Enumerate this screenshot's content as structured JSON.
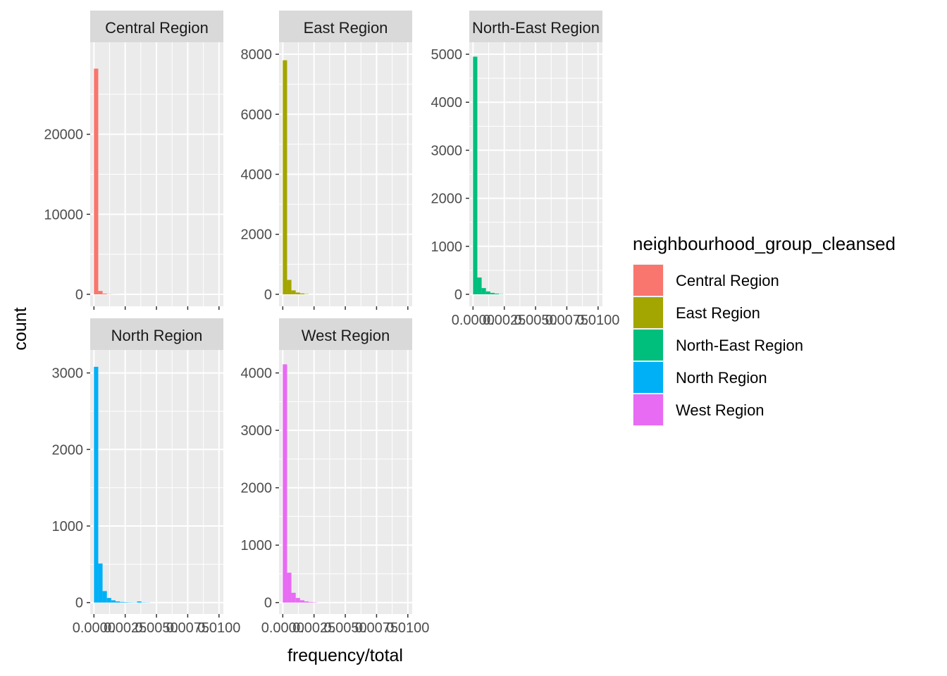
{
  "colors": {
    "Central Region": "#F8766D",
    "East Region": "#A3A500",
    "North-East Region": "#00BF7D",
    "North Region": "#00B0F6",
    "West Region": "#E76BF3"
  },
  "chart_data": {
    "type": "bar",
    "subtype": "faceted-histogram",
    "title": "",
    "xlabel": "frequency/total",
    "ylabel": "count",
    "scales": "free_y",
    "grid": true,
    "xlim": [
      -0.0003,
      0.01035
    ],
    "x_ticks": [
      0.0,
      0.0025,
      0.005,
      0.0075,
      0.01
    ],
    "x_tick_labels": [
      "0.0000",
      "0.0025",
      "0.0050",
      "0.0075",
      "0.0100"
    ],
    "bin_width": 0.000345,
    "legend": {
      "title": "neighbourhood_group_cleansed",
      "position": "right",
      "entries": [
        "Central Region",
        "East Region",
        "North-East Region",
        "North Region",
        "West Region"
      ]
    },
    "facets": [
      {
        "name": "Central Region",
        "strip": "Central Region",
        "ylim": [
          -1500,
          31500
        ],
        "y_ticks": [
          0,
          10000,
          20000
        ],
        "y_tick_labels": [
          "0",
          "10000",
          "20000"
        ],
        "counts": [
          28200,
          420,
          90,
          25,
          10,
          5
        ]
      },
      {
        "name": "East Region",
        "strip": "East Region",
        "ylim": [
          -400,
          8400
        ],
        "y_ticks": [
          0,
          2000,
          4000,
          6000,
          8000
        ],
        "y_tick_labels": [
          "0",
          "2000",
          "4000",
          "6000",
          "8000"
        ],
        "counts": [
          7800,
          480,
          130,
          60,
          30,
          10
        ]
      },
      {
        "name": "North-East Region",
        "strip": "North-East Region",
        "ylim": [
          -250,
          5250
        ],
        "y_ticks": [
          0,
          1000,
          2000,
          3000,
          4000,
          5000
        ],
        "y_tick_labels": [
          "0",
          "1000",
          "2000",
          "3000",
          "4000",
          "5000"
        ],
        "counts": [
          4950,
          350,
          130,
          60,
          30,
          15,
          5
        ]
      },
      {
        "name": "North Region",
        "strip": "North Region",
        "ylim": [
          -150,
          3300
        ],
        "y_ticks": [
          0,
          1000,
          2000,
          3000
        ],
        "y_tick_labels": [
          "0",
          "1000",
          "2000",
          "3000"
        ],
        "counts": [
          3080,
          510,
          150,
          60,
          30,
          15,
          8,
          5,
          3,
          2,
          15,
          3,
          2
        ]
      },
      {
        "name": "West Region",
        "strip": "West Region",
        "ylim": [
          -200,
          4400
        ],
        "y_ticks": [
          0,
          1000,
          2000,
          3000,
          4000
        ],
        "y_tick_labels": [
          "0",
          "1000",
          "2000",
          "3000",
          "4000"
        ],
        "counts": [
          4150,
          520,
          170,
          80,
          40,
          20,
          10,
          5
        ]
      }
    ]
  }
}
